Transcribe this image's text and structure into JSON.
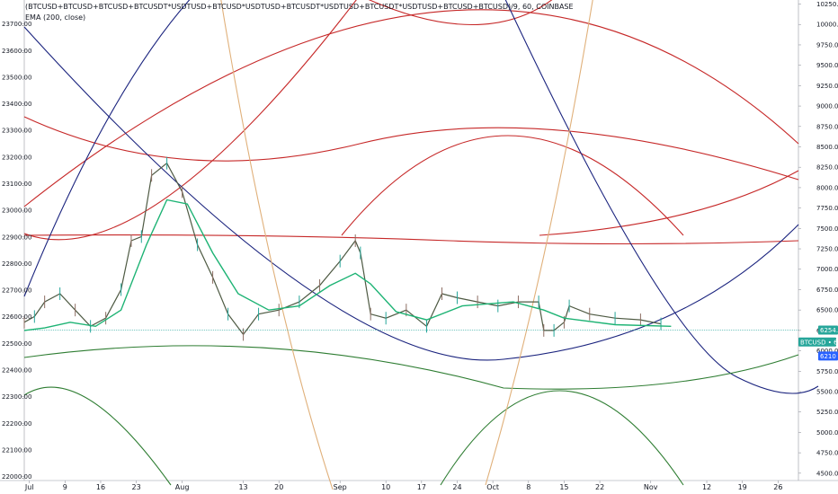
{
  "chart_data": {
    "type": "line",
    "title": "(BTCUSD+BTCUSD+BTCUSD+BTCUSDT*USDTUSD+BTCUSD*USDTUSD+BTCUSDT*USDTUSD+BTCUSDT*USDTUSD+BTCUSD+BTCUSD)/9, 60, COINBASE",
    "indicator": "EMA (200, close)",
    "left_axis": {
      "ticks": [
        "23700.00",
        "23600.00",
        "23500.00",
        "23400.00",
        "23300.00",
        "23200.00",
        "23100.00",
        "23000.00",
        "22900.00",
        "22800.00",
        "22700.00",
        "22600.00",
        "22500.00",
        "22400.00",
        "22300.00",
        "22200.00",
        "22100.00",
        "22000.00"
      ],
      "range": [
        21985,
        23790
      ]
    },
    "right_axis": {
      "ticks": [
        "10250.00",
        "10000.00",
        "9750.00",
        "9500.00",
        "9250.00",
        "9000.00",
        "8750.00",
        "8500.00",
        "8250.00",
        "8000.00",
        "7750.00",
        "7500.00",
        "7250.00",
        "7000.00",
        "6750.00",
        "6500.00",
        "6250.00",
        "6000.00",
        "5750.00",
        "5500.00",
        "5250.00",
        "5000.00",
        "4750.00",
        "4500.00"
      ],
      "range": [
        4410,
        10300
      ]
    },
    "x_axis": {
      "ticks": [
        "Jul",
        "9",
        "16",
        "23",
        "Aug",
        "13",
        "20",
        "Sep",
        "10",
        "17",
        "24",
        "Oct",
        "8",
        "15",
        "22",
        "Nov",
        "12",
        "19",
        "26"
      ],
      "start": "2018-07-01",
      "end": "2018-11-30"
    },
    "badges": [
      {
        "label": "6254.64",
        "value": 6254.64,
        "color": "#26a69a"
      },
      {
        "label": "BTCUSD • 6335.75",
        "value": 6218,
        "color": "#26a69a"
      },
      {
        "label": "6210",
        "value": 6178,
        "color": "#2962ff"
      }
    ],
    "price_series": {
      "name": "(BTCUSD+…)/9",
      "dates": [
        "2018-07-01",
        "2018-07-03",
        "2018-07-05",
        "2018-07-08",
        "2018-07-11",
        "2018-07-14",
        "2018-07-17",
        "2018-07-20",
        "2018-07-22",
        "2018-07-24",
        "2018-07-26",
        "2018-07-29",
        "2018-08-01",
        "2018-08-04",
        "2018-08-07",
        "2018-08-10",
        "2018-08-13",
        "2018-08-16",
        "2018-08-20",
        "2018-08-24",
        "2018-08-28",
        "2018-09-01",
        "2018-09-04",
        "2018-09-05",
        "2018-09-07",
        "2018-09-10",
        "2018-09-14",
        "2018-09-18",
        "2018-09-21",
        "2018-09-24",
        "2018-09-28",
        "2018-10-02",
        "2018-10-06",
        "2018-10-10",
        "2018-10-11",
        "2018-10-13",
        "2018-10-15",
        "2018-10-16",
        "2018-10-20",
        "2018-10-25",
        "2018-10-30",
        "2018-11-03"
      ],
      "values": [
        6350,
        6420,
        6600,
        6700,
        6500,
        6300,
        6400,
        6750,
        7350,
        7400,
        8150,
        8300,
        7950,
        7300,
        6900,
        6450,
        6200,
        6450,
        6500,
        6600,
        6800,
        7100,
        7350,
        7200,
        6450,
        6400,
        6500,
        6300,
        6700,
        6650,
        6600,
        6550,
        6600,
        6600,
        6250,
        6250,
        6350,
        6550,
        6450,
        6400,
        6380,
        6330
      ]
    },
    "ema_series": {
      "name": "EMA (200, close)",
      "dates": [
        "2018-07-01",
        "2018-07-05",
        "2018-07-10",
        "2018-07-15",
        "2018-07-20",
        "2018-07-25",
        "2018-07-29",
        "2018-08-02",
        "2018-08-07",
        "2018-08-12",
        "2018-08-18",
        "2018-08-24",
        "2018-08-30",
        "2018-09-04",
        "2018-09-07",
        "2018-09-12",
        "2018-09-18",
        "2018-09-25",
        "2018-10-05",
        "2018-10-11",
        "2018-10-15",
        "2018-10-25",
        "2018-11-05"
      ],
      "values": [
        6250,
        6280,
        6350,
        6300,
        6500,
        7300,
        7850,
        7800,
        7200,
        6700,
        6500,
        6550,
        6800,
        6950,
        6820,
        6480,
        6380,
        6550,
        6600,
        6500,
        6400,
        6320,
        6300
      ]
    }
  }
}
